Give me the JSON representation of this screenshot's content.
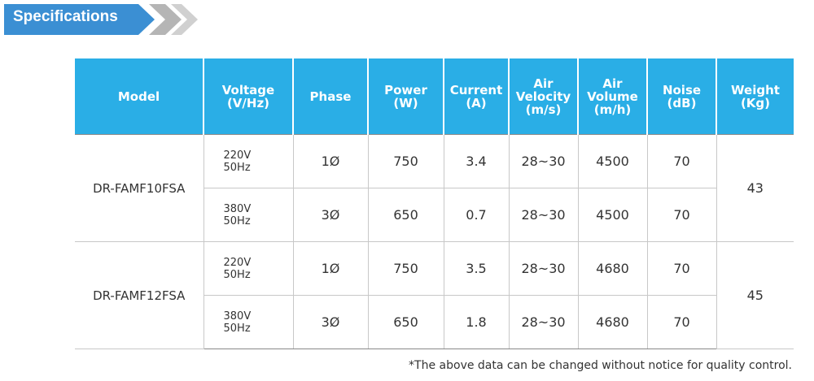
{
  "header": {
    "title": "Specifications"
  },
  "table": {
    "columns": [
      [
        "Model"
      ],
      [
        "Voltage",
        "(V/Hz)"
      ],
      [
        "Phase"
      ],
      [
        "Power",
        "(W)"
      ],
      [
        "Current",
        "(A)"
      ],
      [
        "Air",
        "Velocity",
        "(m/s)"
      ],
      [
        "Air",
        "Volume",
        "(m/h)"
      ],
      [
        "Noise",
        "(dB)"
      ],
      [
        "Weight",
        "(Kg)"
      ]
    ],
    "models": [
      {
        "model": "DR-FAMF10FSA",
        "weight": "43",
        "variants": [
          {
            "voltage": [
              "220V",
              "50Hz"
            ],
            "cells": [
              "1Ø",
              "750",
              "3.4",
              "28~30",
              "4500",
              "70"
            ]
          },
          {
            "voltage": [
              "380V",
              "50Hz"
            ],
            "cells": [
              "3Ø",
              "650",
              "0.7",
              "28~30",
              "4500",
              "70"
            ]
          }
        ]
      },
      {
        "model": "DR-FAMF12FSA",
        "weight": "45",
        "variants": [
          {
            "voltage": [
              "220V",
              "50Hz"
            ],
            "cells": [
              "1Ø",
              "750",
              "3.5",
              "28~30",
              "4680",
              "70"
            ]
          },
          {
            "voltage": [
              "380V",
              "50Hz"
            ],
            "cells": [
              "3Ø",
              "650",
              "1.8",
              "28~30",
              "4680",
              "70"
            ]
          }
        ]
      }
    ]
  },
  "footnote": "*The above data can be changed without notice for quality control."
}
